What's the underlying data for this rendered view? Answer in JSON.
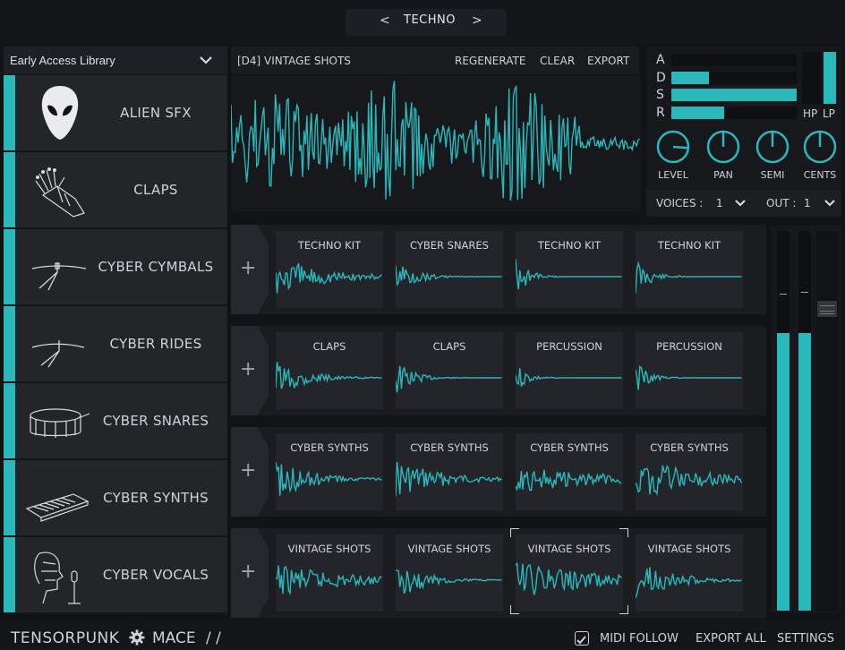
{
  "header": {
    "prev": "<",
    "title": "TECHNO",
    "next": ">"
  },
  "library": {
    "title": "Early Access Library",
    "items": [
      {
        "label": "ALIEN SFX",
        "icon": "alien-icon"
      },
      {
        "label": "CLAPS",
        "icon": "robot-hand-icon"
      },
      {
        "label": "CYBER CYMBALS",
        "icon": "cymbal-icon"
      },
      {
        "label": "CYBER RIDES",
        "icon": "ride-cymbal-icon"
      },
      {
        "label": "CYBER SNARES",
        "icon": "snare-drum-icon"
      },
      {
        "label": "CYBER SYNTHS",
        "icon": "keyboard-icon"
      },
      {
        "label": "CYBER VOCALS",
        "icon": "head-microphone-icon"
      }
    ]
  },
  "sample": {
    "title": "[D4] VINTAGE SHOTS",
    "buttons": {
      "regenerate": "REGENERATE",
      "clear": "CLEAR",
      "export": "EXPORT"
    }
  },
  "envelope": {
    "labels": {
      "a": "A",
      "d": "D",
      "s": "S",
      "r": "R"
    },
    "values": {
      "a": 0.0,
      "d": 0.3,
      "s": 1.0,
      "r": 0.42
    },
    "hp": "HP",
    "lp": "LP",
    "lp_level": 1.0,
    "knobs": [
      {
        "label": "LEVEL",
        "value": 0.85
      },
      {
        "label": "PAN",
        "value": 0.5
      },
      {
        "label": "SEMI",
        "value": 0.5
      },
      {
        "label": "CENTS",
        "value": 0.5
      }
    ],
    "voices_label": "VOICES :",
    "voices_value": "1",
    "out_label": "OUT :",
    "out_value": "1"
  },
  "pads": [
    [
      "TECHNO KIT",
      "CYBER SNARES",
      "TECHNO KIT",
      "TECHNO KIT"
    ],
    [
      "CLAPS",
      "CLAPS",
      "PERCUSSION",
      "PERCUSSION"
    ],
    [
      "CYBER SYNTHS",
      "CYBER SYNTHS",
      "CYBER SYNTHS",
      "CYBER SYNTHS"
    ],
    [
      "VINTAGE SHOTS",
      "VINTAGE SHOTS",
      "VINTAGE SHOTS",
      "VINTAGE SHOTS"
    ]
  ],
  "add_symbol": "+",
  "meters": {
    "left": 0.73,
    "right": 0.73
  },
  "footer": {
    "brand": "TENSORPUNK",
    "product": "MACE",
    "slashes": "/ /",
    "midi_follow": "MIDI FOLLOW",
    "midi_follow_checked": true,
    "export_all": "EXPORT ALL",
    "settings": "SETTINGS"
  },
  "colors": {
    "accent": "#2bb8bb",
    "bg": "#121317",
    "panel": "#23252a"
  }
}
